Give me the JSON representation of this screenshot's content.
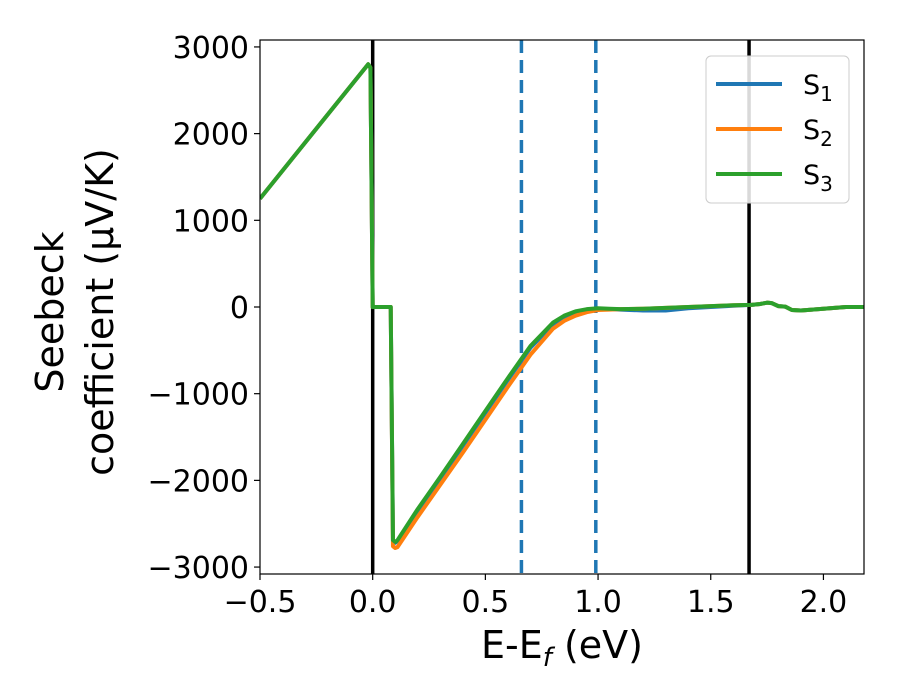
{
  "chart_data": {
    "type": "line",
    "title": "",
    "xlabel": "E-E",
    "xlabel_sub": "f",
    "xlabel_unit": " (eV)",
    "ylabel_line1": "Seebeck",
    "ylabel_line2": "coefficient  (μV/K)",
    "xlim": [
      -0.5,
      2.18
    ],
    "ylim": [
      -3080,
      3080
    ],
    "xticks": [
      -0.5,
      0.0,
      0.5,
      1.0,
      1.5,
      2.0
    ],
    "xtick_labels": [
      "−0.5",
      "0.0",
      "0.5",
      "1.0",
      "1.5",
      "2.0"
    ],
    "yticks": [
      -3000,
      -2000,
      -1000,
      0,
      1000,
      2000,
      3000
    ],
    "ytick_labels": [
      "−3000",
      "−2000",
      "−1000",
      "0",
      "1000",
      "2000",
      "3000"
    ],
    "grid": false,
    "legend_position": "top-right",
    "series": [
      {
        "name": "S",
        "sub": "1",
        "color": "#1f77b4",
        "x": [
          -0.5,
          -0.02,
          -0.01,
          0.0,
          0.08,
          0.09,
          0.1,
          0.11,
          0.2,
          0.3,
          0.4,
          0.5,
          0.6,
          0.7,
          0.8,
          0.85,
          0.9,
          0.95,
          1.0,
          1.05,
          1.1,
          1.2,
          1.3,
          1.4,
          1.5,
          1.6,
          1.68,
          1.72,
          1.75,
          1.77,
          1.8,
          1.83,
          1.86,
          1.9,
          1.95,
          2.0,
          2.1,
          2.18
        ],
        "y": [
          1250,
          2800,
          2760,
          0,
          0,
          -2700,
          -2720,
          -2700,
          -2350,
          -1980,
          -1600,
          -1220,
          -840,
          -470,
          -200,
          -120,
          -70,
          -40,
          -20,
          -25,
          -30,
          -40,
          -40,
          -15,
          0,
          15,
          25,
          35,
          50,
          45,
          10,
          5,
          -35,
          -40,
          -30,
          -20,
          0,
          0
        ]
      },
      {
        "name": "S",
        "sub": "2",
        "color": "#ff7f0e",
        "x": [
          -0.5,
          -0.02,
          -0.01,
          0.0,
          0.08,
          0.09,
          0.1,
          0.11,
          0.2,
          0.3,
          0.4,
          0.5,
          0.6,
          0.7,
          0.8,
          0.85,
          0.9,
          0.95,
          1.0,
          1.05,
          1.1,
          1.2,
          1.3,
          1.4,
          1.5,
          1.6,
          1.68,
          1.72,
          1.75,
          1.77,
          1.8,
          1.83,
          1.86,
          1.9,
          1.95,
          2.0,
          2.1,
          2.18
        ],
        "y": [
          1250,
          2800,
          2760,
          0,
          0,
          -2760,
          -2780,
          -2770,
          -2420,
          -2050,
          -1680,
          -1300,
          -920,
          -550,
          -250,
          -160,
          -100,
          -60,
          -35,
          -30,
          -25,
          -20,
          -10,
          0,
          10,
          20,
          25,
          35,
          50,
          45,
          10,
          5,
          -35,
          -40,
          -30,
          -20,
          0,
          0
        ]
      },
      {
        "name": "S",
        "sub": "3",
        "color": "#2ca02c",
        "x": [
          -0.5,
          -0.02,
          -0.01,
          0.0,
          0.08,
          0.09,
          0.1,
          0.11,
          0.2,
          0.3,
          0.4,
          0.5,
          0.6,
          0.7,
          0.8,
          0.85,
          0.9,
          0.95,
          1.0,
          1.05,
          1.1,
          1.2,
          1.3,
          1.4,
          1.5,
          1.6,
          1.68,
          1.72,
          1.75,
          1.77,
          1.8,
          1.83,
          1.86,
          1.9,
          1.95,
          2.0,
          2.1,
          2.18
        ],
        "y": [
          1250,
          2800,
          2760,
          0,
          0,
          -2690,
          -2710,
          -2690,
          -2330,
          -1960,
          -1580,
          -1200,
          -820,
          -450,
          -180,
          -100,
          -50,
          -25,
          -15,
          -20,
          -25,
          -20,
          -10,
          0,
          10,
          20,
          25,
          35,
          50,
          45,
          10,
          5,
          -35,
          -40,
          -30,
          -20,
          0,
          0
        ]
      }
    ],
    "vertical_lines": [
      {
        "x": 0.0,
        "color": "#000000",
        "style": "solid"
      },
      {
        "x": 1.67,
        "color": "#000000",
        "style": "solid"
      },
      {
        "x": 0.66,
        "color": "#1f77b4",
        "style": "dashed"
      },
      {
        "x": 0.99,
        "color": "#1f77b4",
        "style": "dashed"
      }
    ]
  }
}
